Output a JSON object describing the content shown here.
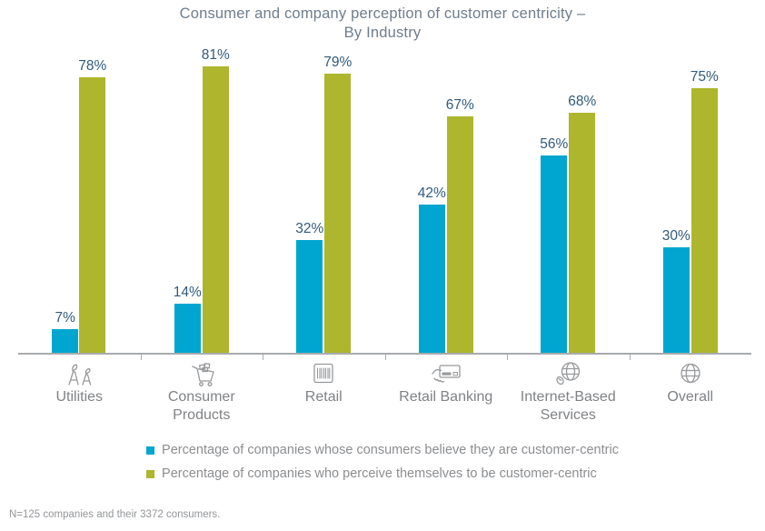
{
  "title": {
    "line1": "Consumer and company perception of customer centricity –",
    "line2": "By Industry"
  },
  "chart_data": {
    "type": "bar",
    "categories": [
      "Utilities",
      "Consumer Products",
      "Retail",
      "Retail Banking",
      "Internet-Based Services",
      "Overall"
    ],
    "category_icons": [
      "power-towers-icon",
      "shopping-cart-icon",
      "barcode-icon",
      "card-in-hand-icon",
      "globe-mouse-icon",
      "globe-icon"
    ],
    "series": [
      {
        "name": "Percentage of companies whose consumers believe they are customer-centric",
        "color": "#00A6D0",
        "values": [
          7,
          14,
          32,
          42,
          56,
          30
        ]
      },
      {
        "name": "Percentage of companies who perceive themselves to be customer-centric",
        "color": "#ADB62C",
        "values": [
          78,
          81,
          79,
          67,
          68,
          75
        ]
      }
    ],
    "value_suffix": "%",
    "ylim": [
      0,
      100
    ],
    "grid": false,
    "legend_position": "bottom",
    "value_labels": true
  },
  "colors": {
    "title_text": "#6E7D8C",
    "value_label_text": "#315A7D",
    "category_text": "#808285",
    "legend_text": "#8B8D90",
    "axis_line": "#A8AAAD",
    "icon_stroke": "#97999C"
  },
  "footnote": "N=125 companies and their 3372 consumers."
}
